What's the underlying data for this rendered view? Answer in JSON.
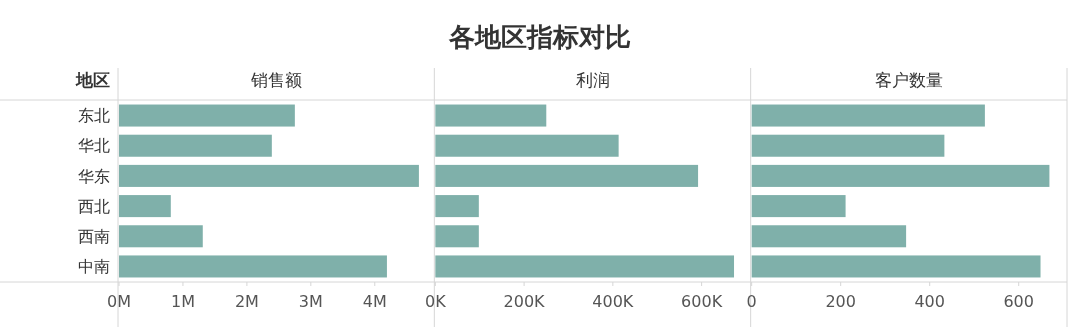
{
  "chart_data": [
    {
      "type": "bar",
      "orientation": "horizontal",
      "ylabel": "地区",
      "xlabel": "销售额",
      "categories": [
        "东北",
        "华北",
        "华东",
        "西北",
        "西南",
        "中南"
      ],
      "values": [
        2750000,
        2390000,
        4690000,
        810000,
        1310000,
        4190000
      ],
      "color": "#7fb0aa",
      "xlim": [
        0,
        4900000
      ],
      "xticks": [
        {
          "value": 0,
          "label": "0M"
        },
        {
          "value": 1000000,
          "label": "1M"
        },
        {
          "value": 2000000,
          "label": "2M"
        },
        {
          "value": 3000000,
          "label": "3M"
        },
        {
          "value": 4000000,
          "label": "4M"
        }
      ],
      "grid": false
    },
    {
      "type": "bar",
      "orientation": "horizontal",
      "title": "各地区指标对比",
      "xlabel": "利润",
      "categories": [
        null,
        null,
        null,
        null,
        null,
        null
      ],
      "values": [
        250000,
        413000,
        592000,
        98000,
        98000,
        673000
      ],
      "color": "#7fb0aa",
      "xlim": [
        0,
        706000
      ],
      "xticks": [
        {
          "value": 0,
          "label": "0K"
        },
        {
          "value": 200000,
          "label": "200K"
        },
        {
          "value": 400000,
          "label": "400K"
        },
        {
          "value": 600000,
          "label": "600K"
        }
      ],
      "tick_labels": "x",
      "grid": false
    },
    {
      "type": "bar",
      "orientation": "horizontal",
      "xlabel": "客户数量",
      "categories": [
        null,
        null,
        null,
        null,
        null,
        null
      ],
      "values": [
        524,
        433,
        669,
        211,
        347,
        649
      ],
      "color": "#7fb0aa",
      "xlim": [
        0,
        704
      ],
      "xticks": [
        0,
        200,
        400,
        600
      ],
      "tick_labels": "x",
      "grid": false
    }
  ]
}
